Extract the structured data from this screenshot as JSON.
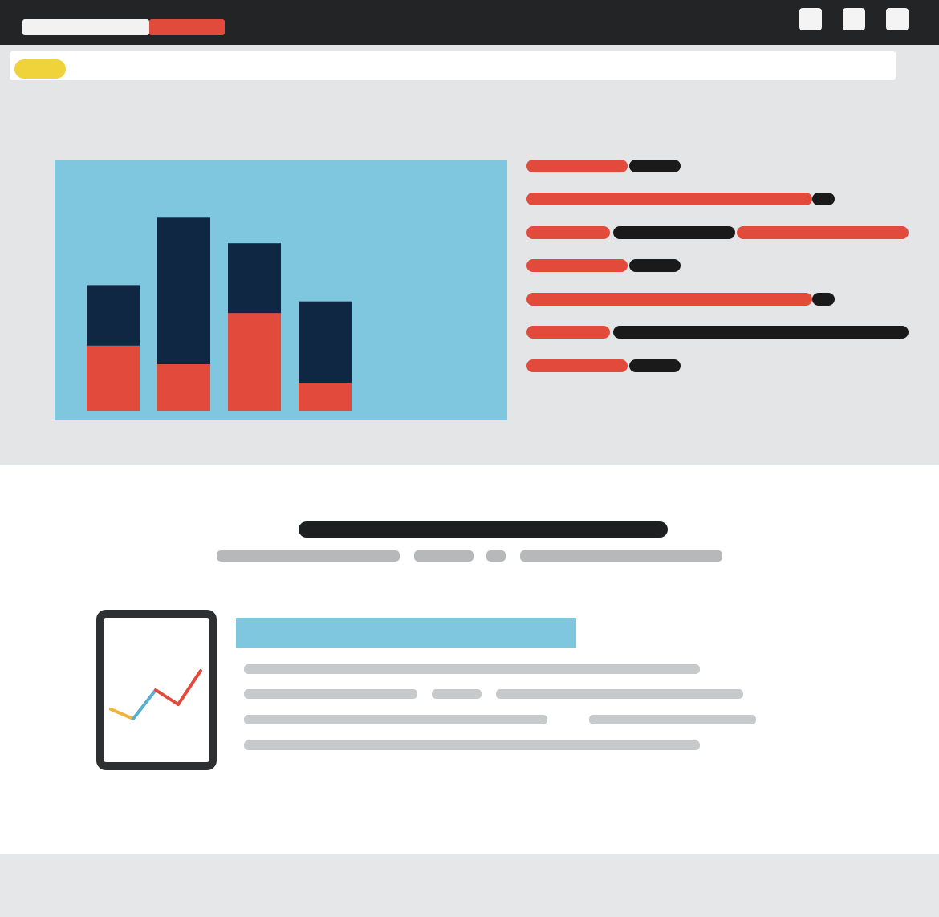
{
  "colors": {
    "titlebar": "#222426",
    "accent_red": "#e24a3b",
    "accent_yellow": "#f0d33a",
    "panel_blue": "#7fc6df",
    "navy": "#0f2742",
    "placeholder_gray": "#c8c9cb",
    "dark": "#1a1a1a"
  },
  "window": {
    "controls": [
      "minimize-icon",
      "maximize-icon",
      "close-icon"
    ]
  },
  "chart_data": {
    "type": "bar",
    "stacked": true,
    "categories": [
      "",
      "",
      "",
      ""
    ],
    "series": [
      {
        "values": [
          28,
          20,
          42,
          12
        ],
        "color": "#e24a3b"
      },
      {
        "values": [
          26,
          63,
          30,
          35
        ],
        "color": "#0f2742"
      }
    ],
    "ylim": [
      0,
      100
    ],
    "grid": false
  },
  "tablet_chart": {
    "type": "line",
    "segments": [
      {
        "color": "#f0b43a",
        "points": [
          [
            0,
            30
          ],
          [
            1,
            20
          ]
        ]
      },
      {
        "color": "#5aaed0",
        "points": [
          [
            1,
            20
          ],
          [
            2,
            50
          ]
        ]
      },
      {
        "color": "#e24a3b",
        "points": [
          [
            2,
            50
          ],
          [
            3,
            35
          ]
        ]
      },
      {
        "color": "#e24a3b",
        "points": [
          [
            3,
            35
          ],
          [
            4,
            70
          ]
        ]
      }
    ],
    "ylim": [
      0,
      100
    ]
  }
}
